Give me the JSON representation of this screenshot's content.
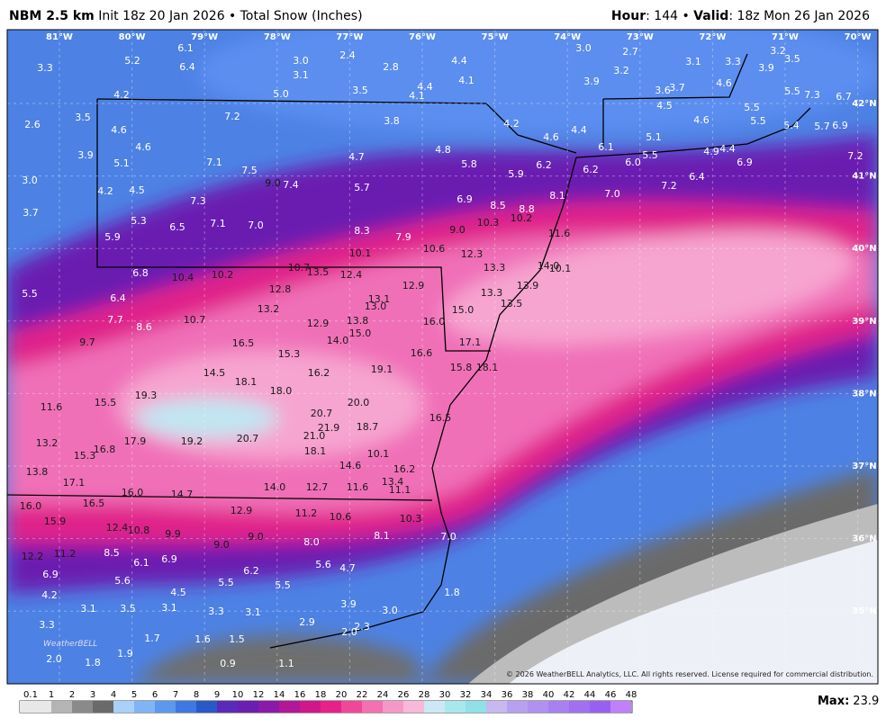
{
  "header": {
    "model": "NBM 2.5 km",
    "details": " Init 18z 20 Jan 2026 • Total Snow (Inches)",
    "hour_label": "Hour",
    "hour_text": ": 144 • ",
    "valid_label": "Valid",
    "valid_text": ": 18z Mon 26 Jan 2026"
  },
  "longitude_labels": [
    "81°W",
    "80°W",
    "79°W",
    "78°W",
    "77°W",
    "76°W",
    "75°W",
    "74°W",
    "73°W",
    "72°W",
    "71°W",
    "70°W"
  ],
  "latitude_labels": [
    "42°N",
    "41°N",
    "40°N",
    "39°N",
    "38°N",
    "37°N",
    "36°N",
    "35°N"
  ],
  "snow_totals": [
    "3.3",
    "5.2",
    "6.1",
    "6.4",
    "3.0",
    "3.1",
    "2.4",
    "2.8",
    "4.4",
    "3.0",
    "2.7",
    "3.2",
    "3.1",
    "3.3",
    "3.9",
    "3.2",
    "3.5",
    "4.2",
    "5.0",
    "3.5",
    "4.1",
    "4.4",
    "4.1",
    "3.9",
    "3.6",
    "3.7",
    "4.6",
    "5.5",
    "7.3",
    "6.7",
    "3.5",
    "2.6",
    "7.2",
    "3.8",
    "4.2",
    "4.5",
    "5.5",
    "4.6",
    "5.5",
    "5.4",
    "5.7",
    "6.9",
    "4.6",
    "4.6",
    "4.4",
    "4.6",
    "5.1",
    "3.9",
    "5.1",
    "7.1",
    "7.5",
    "4.7",
    "4.8",
    "5.8",
    "6.1",
    "5.5",
    "4.9",
    "4.4",
    "6.9",
    "7.2",
    "3.0",
    "4.2",
    "4.5",
    "9.0",
    "7.4",
    "5.7",
    "5.9",
    "6.2",
    "6.2",
    "6.0",
    "6.4",
    "7.2",
    "7.3",
    "7.0",
    "8.1",
    "6.9",
    "3.7",
    "5.3",
    "7.1",
    "7.0",
    "8.5",
    "8.8",
    "10.3",
    "10.2",
    "6.5",
    "5.9",
    "8.3",
    "7.9",
    "9.0",
    "11.6",
    "10.6",
    "10.1",
    "12.3",
    "6.8",
    "10.4",
    "10.2",
    "10.7",
    "13.5",
    "12.4",
    "13.3",
    "14.0",
    "10.1",
    "5.5",
    "6.4",
    "12.8",
    "12.9",
    "13.3",
    "13.9",
    "13.1",
    "13.0",
    "13.2",
    "13.5",
    "15.0",
    "7.7",
    "10.7",
    "8.6",
    "13.8",
    "12.9",
    "16.0",
    "15.0",
    "14.0",
    "9.7",
    "16.5",
    "15.3",
    "17.1",
    "16.6",
    "14.5",
    "15.8",
    "18.1",
    "19.1",
    "16.2",
    "18.1",
    "18.0",
    "19.3",
    "15.5",
    "20.0",
    "11.6",
    "20.7",
    "16.5",
    "21.9",
    "18.7",
    "21.0",
    "17.9",
    "19.2",
    "20.7",
    "13.2",
    "16.8",
    "15.3",
    "18.1",
    "10.1",
    "14.6",
    "16.2",
    "13.8",
    "13.4",
    "17.1",
    "14.0",
    "12.7",
    "11.6",
    "11.1",
    "16.0",
    "14.7",
    "16.0",
    "16.5",
    "12.9",
    "11.2",
    "10.6",
    "10.3",
    "15.9",
    "12.4",
    "10.8",
    "9.9",
    "9.0",
    "8.1",
    "7.0",
    "9.0",
    "8.0",
    "12.2",
    "11.2",
    "8.5",
    "6.1",
    "6.9",
    "5.6",
    "4.7",
    "6.2",
    "6.9",
    "5.6",
    "5.5",
    "5.5",
    "4.5",
    "4.2",
    "1.8",
    "3.1",
    "3.5",
    "3.1",
    "3.3",
    "3.1",
    "3.9",
    "3.0",
    "3.3",
    "2.9",
    "2.3",
    "1.7",
    "1.6",
    "1.5",
    "2.0",
    "1.9",
    "2.0",
    "1.8",
    "0.9",
    "1.1"
  ],
  "logo": "WeatherBELL",
  "copyright": "© 2026 WeatherBELL Analytics, LLC. All rights reserved. License required for commercial distribution.",
  "colorbar": {
    "labels": [
      0.1,
      1,
      2,
      3,
      4,
      5,
      6,
      7,
      8,
      9,
      10,
      12,
      14,
      16,
      18,
      20,
      22,
      24,
      26,
      28,
      30,
      32,
      34,
      36,
      38,
      40,
      42,
      44,
      46,
      48
    ],
    "colors": [
      "#e8e8e8",
      "#b4b4b4",
      "#8a8a8a",
      "#6a6a6a",
      "#a8d0f8",
      "#80b4f4",
      "#5c98ec",
      "#3f78e0",
      "#2a58c8",
      "#5a2ab8",
      "#6a1fb0",
      "#8a1aa8",
      "#b01898",
      "#d0188a",
      "#e8208a",
      "#f04898",
      "#f470b0",
      "#f598c8",
      "#f8b8d8",
      "#cce8f4",
      "#a8e8ec",
      "#90e0e8",
      "#c8b8f0",
      "#b8a0f0",
      "#b090f0",
      "#a880f0",
      "#a070f0",
      "#9860f0",
      "#c080f8"
    ]
  },
  "max_label": "Max:",
  "max_value": "23.9"
}
